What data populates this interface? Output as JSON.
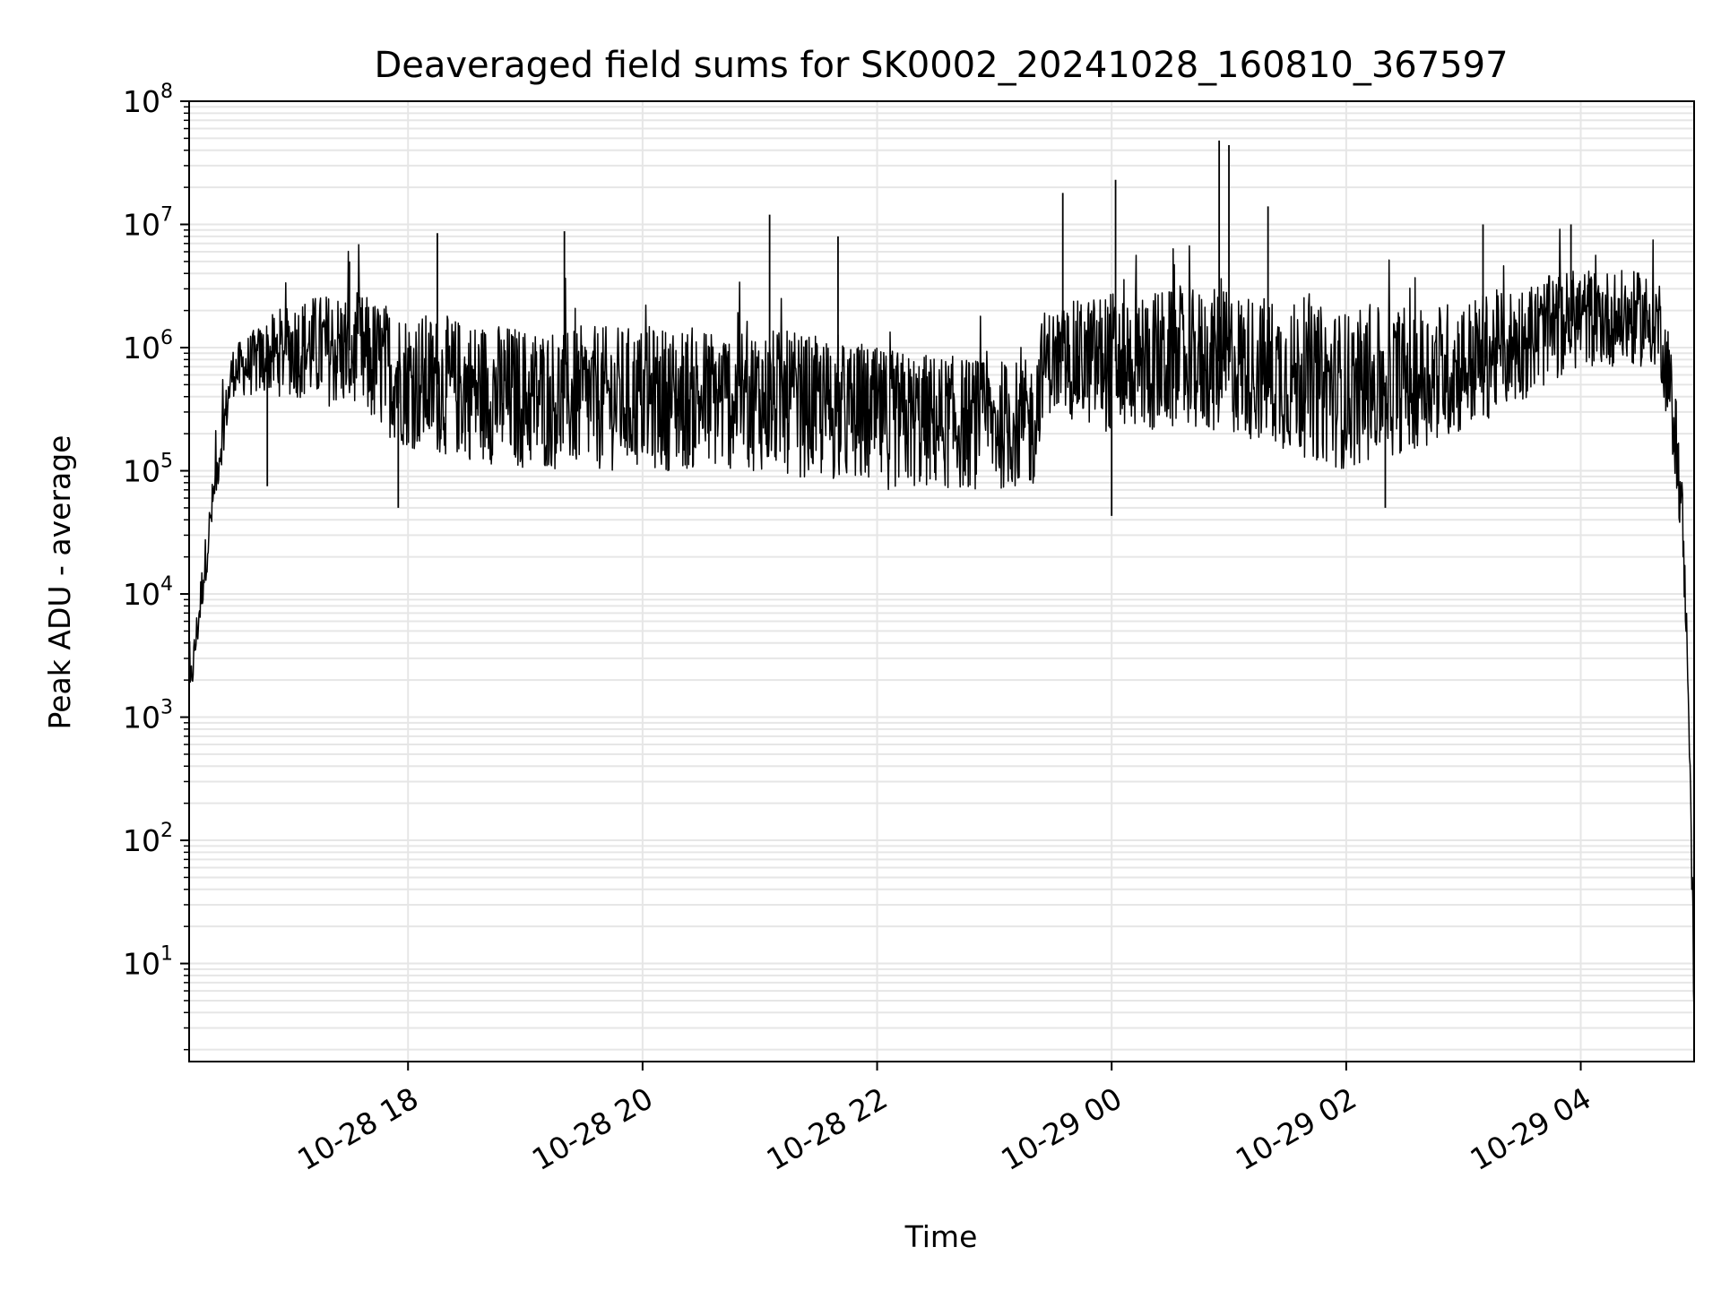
{
  "chart_data": {
    "type": "line",
    "title": "Deaveraged field sums for SK0002_20241028_160810_367597",
    "xlabel": "Time",
    "ylabel": "Peak ADU - average",
    "y_scale": "log",
    "ylim": [
      1.6,
      100000000
    ],
    "xlim": [
      "2024-10-28 16:08",
      "2024-10-29 04:58"
    ],
    "grid": "on",
    "line_color": "#000000",
    "grid_color": "#e6e6e6",
    "x_ticks": [
      {
        "label": "10-28 18",
        "t": "2024-10-28 18:00"
      },
      {
        "label": "10-28 20",
        "t": "2024-10-28 20:00"
      },
      {
        "label": "10-28 22",
        "t": "2024-10-28 22:00"
      },
      {
        "label": "10-29 00",
        "t": "2024-10-29 00:00"
      },
      {
        "label": "10-29 02",
        "t": "2024-10-29 02:00"
      },
      {
        "label": "10-29 04",
        "t": "2024-10-29 04:00"
      }
    ],
    "y_ticks": [
      {
        "base": "10",
        "exp": "1",
        "value": 10
      },
      {
        "base": "10",
        "exp": "2",
        "value": 100
      },
      {
        "base": "10",
        "exp": "3",
        "value": 1000
      },
      {
        "base": "10",
        "exp": "4",
        "value": 10000
      },
      {
        "base": "10",
        "exp": "5",
        "value": 100000
      },
      {
        "base": "10",
        "exp": "6",
        "value": 1000000
      },
      {
        "base": "10",
        "exp": "7",
        "value": 10000000
      },
      {
        "base": "10",
        "exp": "8",
        "value": 100000000
      }
    ],
    "series": [
      {
        "envelope": [
          {
            "t": "2024-10-28 16:08",
            "low": 1000,
            "high": 2000
          },
          {
            "t": "2024-10-28 16:15",
            "low": 8000,
            "high": 20000
          },
          {
            "t": "2024-10-28 16:22",
            "low": 60000,
            "high": 150000
          },
          {
            "t": "2024-10-28 16:30",
            "low": 400000,
            "high": 1000000
          },
          {
            "t": "2024-10-28 17:00",
            "low": 400000,
            "high": 2500000
          },
          {
            "t": "2024-10-28 17:30",
            "low": 300000,
            "high": 3000000
          },
          {
            "t": "2024-10-28 18:00",
            "low": 150000,
            "high": 2000000
          },
          {
            "t": "2024-10-28 19:00",
            "low": 100000,
            "high": 1500000
          },
          {
            "t": "2024-10-28 20:00",
            "low": 100000,
            "high": 1500000
          },
          {
            "t": "2024-10-28 21:00",
            "low": 100000,
            "high": 1500000
          },
          {
            "t": "2024-10-28 22:00",
            "low": 70000,
            "high": 1000000
          },
          {
            "t": "2024-10-28 23:00",
            "low": 70000,
            "high": 800000
          },
          {
            "t": "2024-10-28 23:20",
            "low": 70000,
            "high": 800000
          },
          {
            "t": "2024-10-28 23:25",
            "low": 300000,
            "high": 2000000
          },
          {
            "t": "2024-10-29 00:00",
            "low": 200000,
            "high": 3000000
          },
          {
            "t": "2024-10-29 01:00",
            "low": 200000,
            "high": 3000000
          },
          {
            "t": "2024-10-29 02:00",
            "low": 100000,
            "high": 2000000
          },
          {
            "t": "2024-10-29 03:00",
            "low": 200000,
            "high": 2500000
          },
          {
            "t": "2024-10-29 04:00",
            "low": 700000,
            "high": 4500000
          },
          {
            "t": "2024-10-29 04:40",
            "low": 700000,
            "high": 4000000
          },
          {
            "t": "2024-10-29 04:48",
            "low": 100000,
            "high": 600000
          },
          {
            "t": "2024-10-29 04:52",
            "low": 20000,
            "high": 80000
          },
          {
            "t": "2024-10-29 04:55",
            "low": 1500,
            "high": 3000
          },
          {
            "t": "2024-10-29 04:58",
            "low": 3,
            "high": 10
          }
        ],
        "spikes": [
          {
            "t": "2024-10-28 16:48",
            "value": 75000
          },
          {
            "t": "2024-10-28 17:30",
            "value": 5000000
          },
          {
            "t": "2024-10-28 18:15",
            "value": 8500000
          },
          {
            "t": "2024-10-28 17:55",
            "value": 50000
          },
          {
            "t": "2024-10-28 19:20",
            "value": 8800000
          },
          {
            "t": "2024-10-28 21:05",
            "value": 12000000
          },
          {
            "t": "2024-10-28 21:40",
            "value": 8000000
          },
          {
            "t": "2024-10-28 23:35",
            "value": 18000000
          },
          {
            "t": "2024-10-29 00:02",
            "value": 23000000
          },
          {
            "t": "2024-10-29 00:55",
            "value": 48000000
          },
          {
            "t": "2024-10-29 01:00",
            "value": 44000000
          },
          {
            "t": "2024-10-29 01:20",
            "value": 14000000
          },
          {
            "t": "2024-10-29 03:10",
            "value": 10000000
          },
          {
            "t": "2024-10-29 03:55",
            "value": 10000000
          },
          {
            "t": "2024-10-29 00:00",
            "value": 43000
          },
          {
            "t": "2024-10-29 02:20",
            "value": 50000
          }
        ]
      }
    ]
  }
}
